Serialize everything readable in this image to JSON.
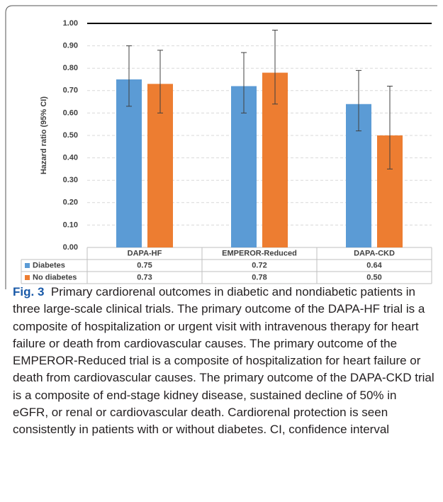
{
  "chart_data": {
    "type": "bar",
    "y_label": "Hazard ratio (95% CI)",
    "categories": [
      "DAPA-HF",
      "EMPEROR-Reduced",
      "DAPA-CKD"
    ],
    "series": [
      {
        "name": "Diabetes",
        "color": "#5b9bd5",
        "values": [
          0.75,
          0.72,
          0.64
        ],
        "value_labels": [
          "0.75",
          "0.72",
          "0.64"
        ],
        "error_low": [
          0.63,
          0.6,
          0.52
        ],
        "error_high": [
          0.9,
          0.87,
          0.79
        ]
      },
      {
        "name": "No diabetes",
        "color": "#ed7d31",
        "values": [
          0.73,
          0.78,
          0.5
        ],
        "value_labels": [
          "0.73",
          "0.78",
          "0.50"
        ],
        "error_low": [
          0.6,
          0.64,
          0.35
        ],
        "error_high": [
          0.88,
          0.97,
          0.72
        ]
      }
    ],
    "ylim": [
      0,
      1
    ],
    "yticks": [
      {
        "value": 0,
        "label": "0.00"
      },
      {
        "value": 0.1,
        "label": "0.10"
      },
      {
        "value": 0.2,
        "label": "0.20"
      },
      {
        "value": 0.3,
        "label": "0.30"
      },
      {
        "value": 0.4,
        "label": "0.40"
      },
      {
        "value": 0.5,
        "label": "0.50"
      },
      {
        "value": 0.6,
        "label": "0.60"
      },
      {
        "value": 0.7,
        "label": "0.70"
      },
      {
        "value": 0.8,
        "label": "0.80"
      },
      {
        "value": 0.9,
        "label": "0.90"
      },
      {
        "value": 1,
        "label": "1.00"
      }
    ],
    "reference_line": 1,
    "grid": true,
    "caption": {
      "label": "Fig. 3",
      "text": "Primary cardiorenal outcomes in diabetic and nondiabetic patients in three large-scale clinical trials. The primary outcome of the DAPA-HF trial is a composite of hospitalization or urgent visit with intravenous therapy for heart failure or death from cardiovascular causes. The primary outcome of the EMPEROR-Reduced trial is a composite of hospitalization for heart failure or death from cardiovascular causes. The primary outcome of the DAPA-CKD trial is a composite of end-stage kidney disease, sustained decline of 50% in eGFR, or renal or cardiovascular death. Cardiorenal protection is seen consistently in patients with or without diabetes. CI, confidence interval"
    }
  }
}
